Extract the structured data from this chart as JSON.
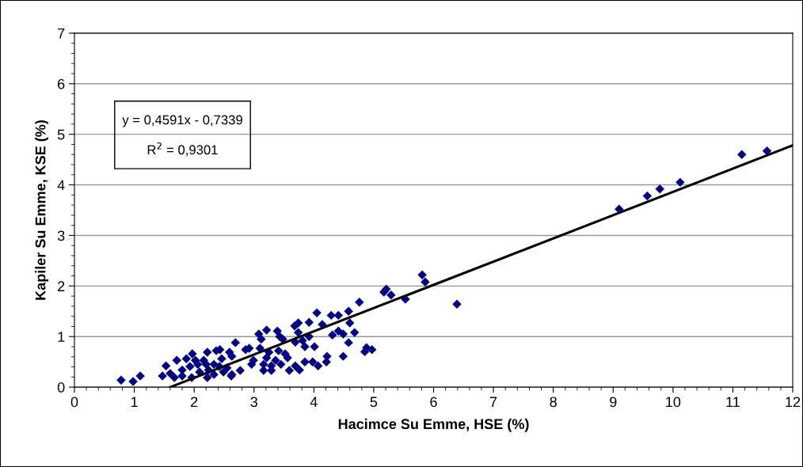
{
  "chart_data": {
    "type": "scatter",
    "xlabel": "Hacimce Su Emme, HSE (%)",
    "ylabel": "Kapiler Su Emme, KSE (%)",
    "xlim": [
      0,
      12
    ],
    "xticks": [
      0,
      1,
      2,
      3,
      4,
      5,
      6,
      7,
      8,
      9,
      10,
      11,
      12
    ],
    "ylim": [
      0,
      7
    ],
    "yticks": [
      0,
      1,
      2,
      3,
      4,
      5,
      6,
      7
    ],
    "grid": "y",
    "legend": false,
    "annotations": [
      "y = 0,4591x - 0,7339",
      "R$^{2}$ = 0,9301"
    ],
    "series": [
      {
        "color": "#000080",
        "marker": "diamond",
        "x": [
          0.78,
          0.98,
          1.1,
          1.47,
          1.53,
          1.71,
          1.87,
          1.97,
          2.22,
          2.37,
          2.43,
          2.59,
          2.62,
          1.6,
          1.8,
          1.93,
          2.06,
          1.8,
          1.96,
          2.09,
          2.22,
          2.24,
          2.33,
          2.42,
          2.16,
          2.46,
          2.55,
          2.2,
          2.02,
          1.67,
          2.33,
          2.49,
          4.76,
          4.05,
          4.29,
          4.41,
          4.58,
          4.6,
          4.14,
          3.92,
          3.68,
          3.74,
          3.21,
          3.39,
          3.08,
          3.12,
          3.43,
          3.48,
          3.74,
          3.81,
          3.92,
          4.31,
          4.41,
          4.49,
          4.68,
          4.58,
          4.01,
          3.69,
          3.85,
          2.69,
          2.86,
          2.92,
          3.1,
          3.25,
          3.41,
          3.52,
          3.56,
          3.21,
          3.36,
          2.99,
          2.96,
          3.16,
          3.29,
          3.45,
          3.69,
          3.85,
          3.98,
          4.07,
          4.22,
          4.21,
          4.49,
          3.16,
          3.29,
          3.59,
          3.76,
          2.77,
          2.63,
          2.63,
          4.88,
          4.97,
          4.85,
          5.21,
          5.17,
          5.29,
          5.53,
          5.81,
          5.86,
          6.39,
          9.1,
          9.57,
          9.78,
          10.12,
          11.15,
          11.57
        ],
        "values": [
          0.14,
          0.11,
          0.22,
          0.22,
          0.42,
          0.53,
          0.56,
          0.66,
          0.69,
          0.72,
          0.74,
          0.69,
          0.22,
          0.27,
          0.34,
          0.41,
          0.45,
          0.22,
          0.19,
          0.3,
          0.19,
          0.34,
          0.45,
          0.41,
          0.53,
          0.56,
          0.38,
          0.45,
          0.53,
          0.19,
          0.25,
          0.3,
          1.68,
          1.47,
          1.42,
          1.42,
          1.5,
          1.27,
          1.24,
          1.28,
          1.21,
          1.27,
          1.13,
          1.11,
          1.05,
          0.95,
          1.0,
          0.95,
          1.08,
          0.92,
          1.0,
          1.03,
          1.11,
          1.05,
          1.08,
          0.88,
          0.8,
          0.89,
          0.8,
          0.88,
          0.74,
          0.77,
          0.77,
          0.69,
          0.72,
          0.66,
          0.58,
          0.58,
          0.53,
          0.53,
          0.45,
          0.45,
          0.42,
          0.45,
          0.42,
          0.5,
          0.5,
          0.42,
          0.61,
          0.5,
          0.61,
          0.33,
          0.33,
          0.33,
          0.34,
          0.33,
          0.25,
          0.61,
          0.78,
          0.74,
          0.7,
          1.94,
          1.88,
          1.82,
          1.74,
          2.22,
          2.08,
          1.64,
          3.52,
          3.78,
          3.92,
          4.05,
          4.6,
          4.67
        ]
      },
      {
        "type": "line",
        "color": "#000000",
        "marker": "none",
        "x": [
          1.6,
          12
        ],
        "values": [
          0.0,
          4.78
        ]
      }
    ]
  }
}
